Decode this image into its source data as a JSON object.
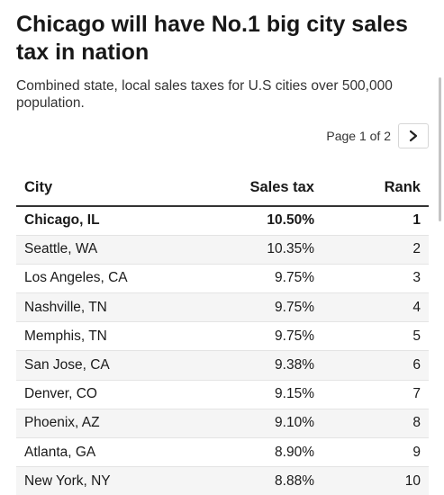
{
  "header": {
    "title": "Chicago will have No.1 big city sales tax in nation",
    "subtitle": "Combined state, local sales taxes for U.S cities over 500,000 population."
  },
  "pagination": {
    "label": "Page 1 of 2",
    "next_icon": "chevron-right-icon"
  },
  "chart_data": {
    "type": "table",
    "columns": [
      "City",
      "Sales tax",
      "Rank"
    ],
    "rows": [
      [
        "Chicago, IL",
        "10.50%",
        "1"
      ],
      [
        "Seattle, WA",
        "10.35%",
        "2"
      ],
      [
        "Los Angeles, CA",
        "9.75%",
        "3"
      ],
      [
        "Nashville, TN",
        "9.75%",
        "4"
      ],
      [
        "Memphis, TN",
        "9.75%",
        "5"
      ],
      [
        "San Jose, CA",
        "9.38%",
        "6"
      ],
      [
        "Denver, CO",
        "9.15%",
        "7"
      ],
      [
        "Phoenix, AZ",
        "9.10%",
        "8"
      ],
      [
        "Atlanta, GA",
        "8.90%",
        "9"
      ],
      [
        "New York, NY",
        "8.88%",
        "10"
      ]
    ]
  },
  "colors": {
    "text": "#1a1a1a",
    "header_rule": "#333333",
    "stripe": "#f5f5f5"
  }
}
